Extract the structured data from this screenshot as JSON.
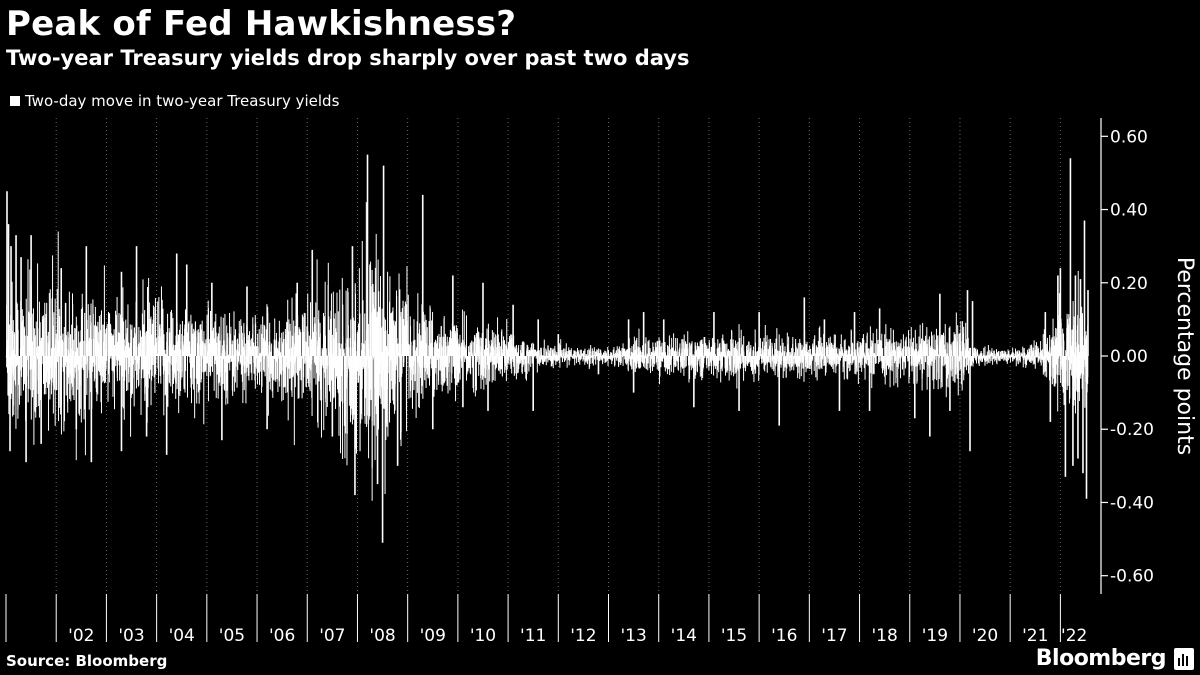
{
  "header": {
    "title": "Peak of Fed Hawkishness?",
    "subtitle": "Two-year Treasury yields drop sharply over past two days"
  },
  "footer": {
    "source": "Source: Bloomberg",
    "brand": "Bloomberg"
  },
  "colors": {
    "background": "#000000",
    "series": "#ffffff",
    "gridline": "#666666"
  },
  "chart_data": {
    "type": "bar",
    "title": "Peak of Fed Hawkishness?",
    "subtitle": "Two-year Treasury yields drop sharply over past two days",
    "ylabel": "Percentage points",
    "xlabel": "",
    "ylim": [
      -0.65,
      0.65
    ],
    "y_ticks": [
      0.6,
      0.4,
      0.2,
      0.0,
      -0.2,
      -0.4,
      -0.6
    ],
    "y_tick_labels": [
      "0.60",
      "0.40",
      "0.20",
      "0.00",
      "-0.20",
      "-0.40",
      "-0.60"
    ],
    "y_axis_side": "right",
    "grid": false,
    "x_grid": "dotted vertical lines at year boundaries",
    "legend": {
      "placement": "top-left",
      "entries": [
        "Two-day move in two-year Treasury yields"
      ]
    },
    "x_tick_labels": [
      "'02",
      "'03",
      "'04",
      "'05",
      "'06",
      "'07",
      "'08",
      "'09",
      "'10",
      "'11",
      "'12",
      "'13",
      "'14",
      "'15",
      "'16",
      "'17",
      "'18",
      "'19",
      "'20",
      "'21",
      "'22"
    ],
    "x_range": [
      2001.0,
      2022.55
    ],
    "series": [
      {
        "name": "Two-day move in two-year Treasury yields",
        "volatility_profile": [
          [
            2001.0,
            0.1
          ],
          [
            2001.6,
            0.1
          ],
          [
            2002.0,
            0.09
          ],
          [
            2003.0,
            0.075
          ],
          [
            2004.0,
            0.08
          ],
          [
            2005.0,
            0.065
          ],
          [
            2006.0,
            0.05
          ],
          [
            2007.0,
            0.07
          ],
          [
            2007.7,
            0.11
          ],
          [
            2008.0,
            0.12
          ],
          [
            2008.5,
            0.13
          ],
          [
            2009.0,
            0.085
          ],
          [
            2009.5,
            0.06
          ],
          [
            2010.0,
            0.045
          ],
          [
            2011.0,
            0.04
          ],
          [
            2011.5,
            0.02
          ],
          [
            2012.0,
            0.012
          ],
          [
            2013.0,
            0.012
          ],
          [
            2013.5,
            0.022
          ],
          [
            2014.0,
            0.025
          ],
          [
            2015.0,
            0.03
          ],
          [
            2016.0,
            0.032
          ],
          [
            2017.0,
            0.025
          ],
          [
            2018.0,
            0.027
          ],
          [
            2019.0,
            0.035
          ],
          [
            2019.6,
            0.045
          ],
          [
            2020.0,
            0.05
          ],
          [
            2020.3,
            0.012
          ],
          [
            2021.0,
            0.01
          ],
          [
            2021.6,
            0.02
          ],
          [
            2022.0,
            0.07
          ],
          [
            2022.55,
            0.08
          ]
        ],
        "spikes": [
          [
            2001.02,
            0.45
          ],
          [
            2001.05,
            0.36
          ],
          [
            2001.08,
            -0.26
          ],
          [
            2001.1,
            0.3
          ],
          [
            2001.2,
            0.33
          ],
          [
            2001.3,
            0.27
          ],
          [
            2001.4,
            -0.29
          ],
          [
            2001.5,
            0.33
          ],
          [
            2001.7,
            -0.24
          ],
          [
            2002.1,
            0.24
          ],
          [
            2002.4,
            -0.2
          ],
          [
            2002.6,
            0.3
          ],
          [
            2002.7,
            -0.29
          ],
          [
            2003.3,
            0.23
          ],
          [
            2003.3,
            -0.26
          ],
          [
            2003.6,
            0.3
          ],
          [
            2003.8,
            -0.22
          ],
          [
            2004.2,
            -0.27
          ],
          [
            2004.4,
            0.28
          ],
          [
            2004.6,
            0.25
          ],
          [
            2005.1,
            0.2
          ],
          [
            2005.3,
            -0.23
          ],
          [
            2005.8,
            0.19
          ],
          [
            2006.2,
            -0.2
          ],
          [
            2006.8,
            0.2
          ],
          [
            2007.1,
            0.29
          ],
          [
            2007.5,
            -0.22
          ],
          [
            2007.9,
            0.3
          ],
          [
            2007.95,
            -0.38
          ],
          [
            2008.2,
            0.55
          ],
          [
            2008.25,
            0.25
          ],
          [
            2008.4,
            -0.35
          ],
          [
            2008.5,
            -0.51
          ],
          [
            2008.52,
            0.52
          ],
          [
            2008.8,
            -0.3
          ],
          [
            2009.3,
            0.44
          ],
          [
            2009.5,
            -0.2
          ],
          [
            2009.9,
            0.22
          ],
          [
            2010.1,
            -0.14
          ],
          [
            2010.5,
            0.2
          ],
          [
            2010.6,
            -0.15
          ],
          [
            2011.1,
            0.14
          ],
          [
            2011.5,
            -0.15
          ],
          [
            2011.6,
            0.1
          ],
          [
            2012.0,
            0.06
          ],
          [
            2012.8,
            -0.05
          ],
          [
            2013.4,
            0.1
          ],
          [
            2013.5,
            -0.1
          ],
          [
            2013.7,
            0.12
          ],
          [
            2014.1,
            0.1
          ],
          [
            2014.7,
            -0.14
          ],
          [
            2015.1,
            0.12
          ],
          [
            2015.6,
            -0.15
          ],
          [
            2016.0,
            0.12
          ],
          [
            2016.4,
            -0.19
          ],
          [
            2016.9,
            0.16
          ],
          [
            2017.3,
            0.1
          ],
          [
            2017.6,
            -0.15
          ],
          [
            2017.9,
            0.12
          ],
          [
            2018.2,
            -0.15
          ],
          [
            2018.4,
            0.13
          ],
          [
            2019.1,
            -0.17
          ],
          [
            2019.4,
            -0.22
          ],
          [
            2019.6,
            0.17
          ],
          [
            2019.8,
            -0.15
          ],
          [
            2020.15,
            0.18
          ],
          [
            2020.2,
            -0.26
          ],
          [
            2020.25,
            0.15
          ],
          [
            2021.7,
            0.12
          ],
          [
            2021.8,
            -0.18
          ],
          [
            2021.95,
            0.22
          ],
          [
            2022.0,
            0.24
          ],
          [
            2022.1,
            -0.33
          ],
          [
            2022.2,
            0.54
          ],
          [
            2022.25,
            -0.3
          ],
          [
            2022.3,
            0.22
          ],
          [
            2022.35,
            -0.28
          ],
          [
            2022.4,
            0.21
          ],
          [
            2022.45,
            -0.32
          ],
          [
            2022.48,
            0.37
          ],
          [
            2022.52,
            -0.39
          ],
          [
            2022.55,
            0.18
          ]
        ]
      }
    ]
  }
}
